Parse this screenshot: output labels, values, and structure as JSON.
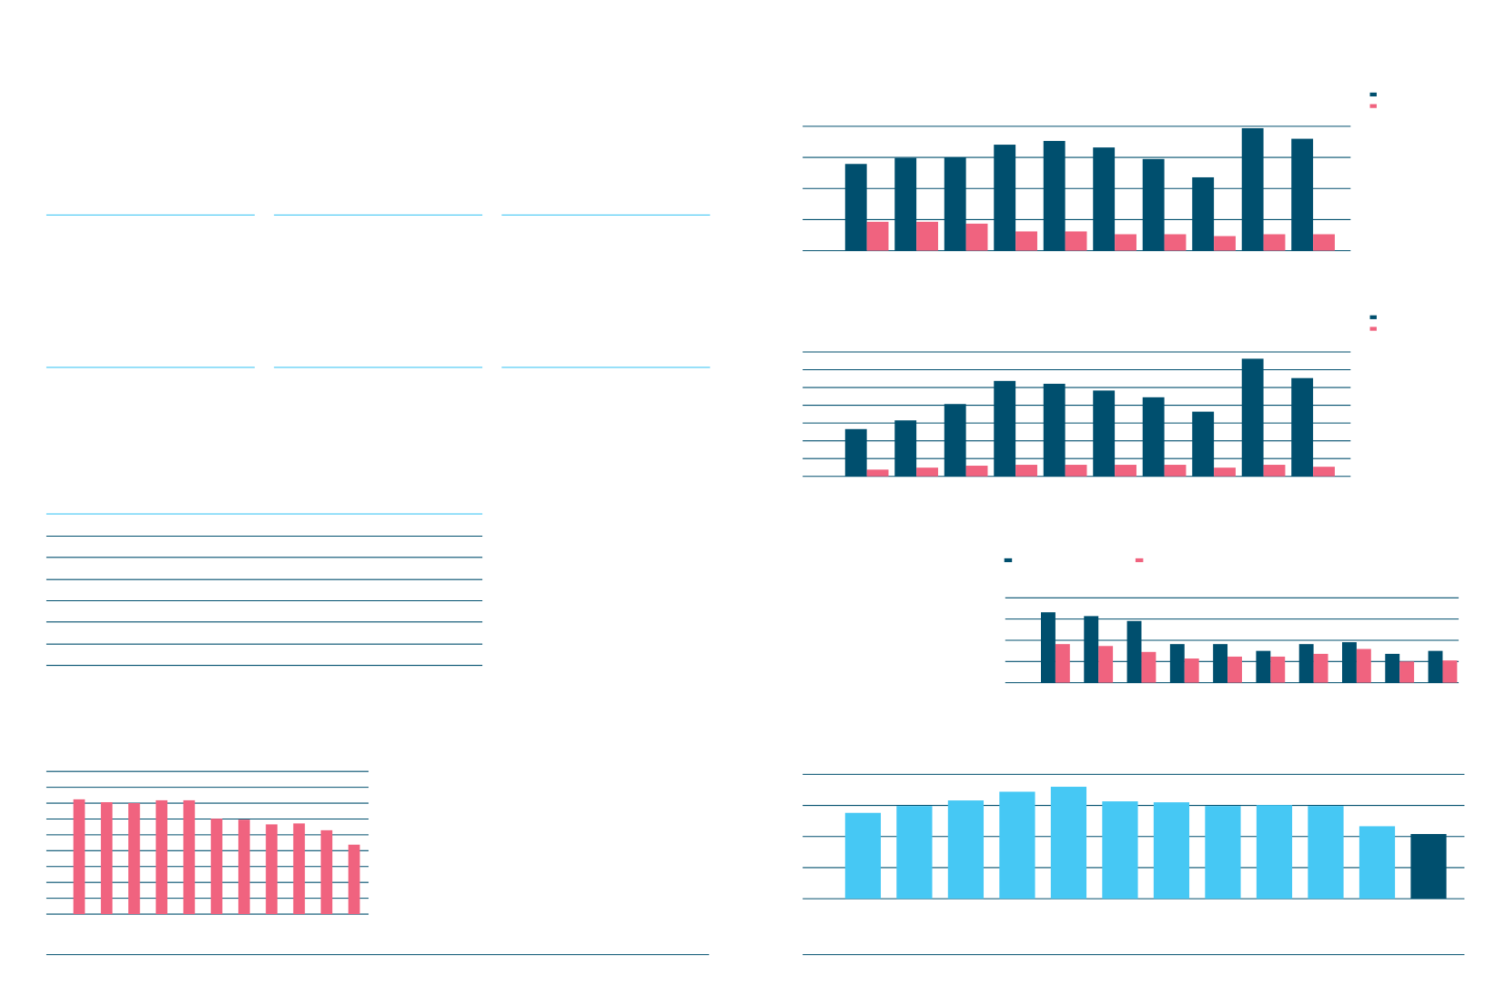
{
  "chart_data": [
    {
      "type": "bar",
      "ylim": [
        0,
        4
      ],
      "yticks": [
        0,
        1,
        2,
        3,
        4
      ],
      "grid": true,
      "legend": true,
      "series": [
        {
          "color": "#004f6e",
          "values": [
            2.79,
            2.98,
            3.0,
            3.41,
            3.53,
            3.32,
            2.95,
            2.36,
            3.94,
            3.6
          ]
        },
        {
          "color": "#f0637f",
          "values": [
            0.93,
            0.93,
            0.87,
            0.62,
            0.62,
            0.53,
            0.53,
            0.47,
            0.53,
            0.53
          ]
        }
      ]
    },
    {
      "type": "bar",
      "ylim": [
        0,
        7
      ],
      "yticks": [
        0,
        1,
        2,
        3,
        4,
        5,
        6,
        7
      ],
      "grid": true,
      "legend": true,
      "series": [
        {
          "color": "#004f6e",
          "values": [
            2.66,
            3.15,
            4.07,
            5.37,
            5.21,
            4.83,
            4.45,
            3.64,
            6.62,
            5.53
          ]
        },
        {
          "color": "#f0637f",
          "values": [
            0.38,
            0.49,
            0.6,
            0.65,
            0.65,
            0.65,
            0.65,
            0.49,
            0.65,
            0.54
          ]
        }
      ]
    },
    {
      "type": "bar",
      "ylim": [
        0,
        4
      ],
      "yticks": [
        0,
        1,
        2,
        3,
        4
      ],
      "grid": true,
      "legend": true,
      "series": [
        {
          "color": "#004f6e",
          "values": [
            3.32,
            3.14,
            2.91,
            1.82,
            1.82,
            1.5,
            1.82,
            1.91,
            1.36,
            1.5
          ]
        },
        {
          "color": "#f0637f",
          "values": [
            1.82,
            1.73,
            1.45,
            1.14,
            1.23,
            1.23,
            1.36,
            1.59,
            1.0,
            1.05
          ]
        }
      ]
    },
    {
      "type": "bar",
      "ylim": [
        0,
        4
      ],
      "yticks": [
        0,
        1,
        2,
        3,
        4
      ],
      "grid": true,
      "values": [
        2.76,
        2.98,
        3.16,
        3.44,
        3.6,
        3.13,
        3.1,
        2.98,
        3.01,
        2.98,
        2.33,
        2.08
      ],
      "colors": [
        "#46c8f4",
        "#46c8f4",
        "#46c8f4",
        "#46c8f4",
        "#46c8f4",
        "#46c8f4",
        "#46c8f4",
        "#46c8f4",
        "#46c8f4",
        "#46c8f4",
        "#46c8f4",
        "#004f6e"
      ]
    },
    {
      "type": "bar",
      "ylim": [
        0,
        9
      ],
      "yticks": [
        0,
        1,
        2,
        3,
        4,
        5,
        6,
        7,
        8,
        9
      ],
      "grid": true,
      "values": [
        7.24,
        7.06,
        7.0,
        7.18,
        7.18,
        6.02,
        5.96,
        5.66,
        5.72,
        5.29,
        4.38
      ],
      "color": "#f0637f"
    }
  ]
}
